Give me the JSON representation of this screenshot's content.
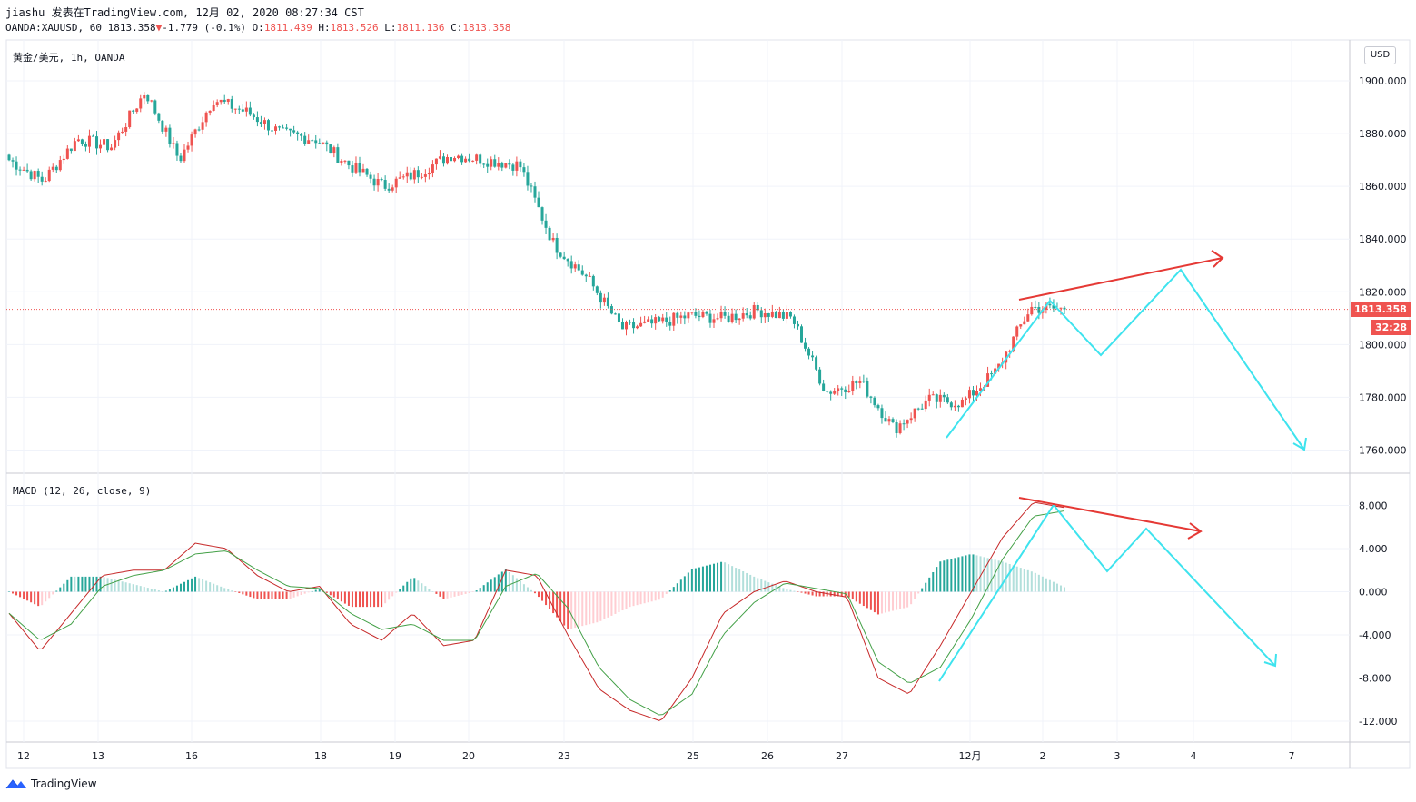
{
  "header": {
    "author": "jiashu",
    "published_text": "发表在TradingView.com, 12月 02, 2020 08:27:34 CST",
    "symbol": "OANDA:XAUUSD, 60",
    "last": "1813.358",
    "change_arrow": "▼",
    "change": "-1.779",
    "change_pct": "(-0.1%)",
    "o_label": "O:",
    "o": "1811.439",
    "h_label": "H:",
    "h": "1813.526",
    "l_label": "L:",
    "l": "1811.136",
    "c_label": "C:",
    "c": "1813.358"
  },
  "price_pane": {
    "title": "黄金/美元, 1h, OANDA",
    "currency_button": "USD",
    "last_price_tag": "1813.358",
    "countdown_tag": "32:28"
  },
  "macd_pane": {
    "title": "MACD (12, 26, close, 9)"
  },
  "colors": {
    "up": "#ef5350",
    "down": "#26a69a",
    "macd_line": "#c62828",
    "signal_line": "#43a047",
    "annotation_cyan": "#3ee3ee",
    "annotation_red": "#e53935",
    "grid": "#f0f3fa"
  },
  "brand": {
    "name": "TradingView",
    "icon": "tradingview-logo-icon"
  },
  "chart_data": [
    {
      "type": "candlestick",
      "title": "黄金/美元, 1h, OANDA",
      "y_ticks": [
        "1900.000",
        "1880.000",
        "1860.000",
        "1840.000",
        "1820.000",
        "1800.000",
        "1780.000",
        "1760.000"
      ],
      "ylim": [
        1755,
        1905
      ],
      "x_ticks": [
        "12",
        "13",
        "16",
        "18",
        "19",
        "20",
        "23",
        "25",
        "26",
        "27",
        "12月",
        "2",
        "3",
        "4",
        "7"
      ],
      "last_price": 1813.358,
      "close_path_estimate": [
        {
          "x": "12",
          "y": 1870
        },
        {
          "x": "12",
          "y": 1862
        },
        {
          "x": "13",
          "y": 1878
        },
        {
          "x": "13",
          "y": 1875
        },
        {
          "x": "16",
          "y": 1896
        },
        {
          "x": "16",
          "y": 1870
        },
        {
          "x": "16",
          "y": 1893
        },
        {
          "x": "18",
          "y": 1888
        },
        {
          "x": "18",
          "y": 1880
        },
        {
          "x": "19",
          "y": 1878
        },
        {
          "x": "19",
          "y": 1868
        },
        {
          "x": "20",
          "y": 1860
        },
        {
          "x": "20",
          "y": 1865
        },
        {
          "x": "23",
          "y": 1872
        },
        {
          "x": "23",
          "y": 1870
        },
        {
          "x": "23",
          "y": 1868
        },
        {
          "x": "23",
          "y": 1838
        },
        {
          "x": "23",
          "y": 1825
        },
        {
          "x": "25",
          "y": 1806
        },
        {
          "x": "25",
          "y": 1808
        },
        {
          "x": "26",
          "y": 1811
        },
        {
          "x": "26",
          "y": 1810
        },
        {
          "x": "27",
          "y": 1813
        },
        {
          "x": "27",
          "y": 1810
        },
        {
          "x": "27",
          "y": 1782
        },
        {
          "x": "27",
          "y": 1786
        },
        {
          "x": "12月",
          "y": 1768
        },
        {
          "x": "12月",
          "y": 1779
        },
        {
          "x": "12月",
          "y": 1778
        },
        {
          "x": "12月",
          "y": 1790
        },
        {
          "x": "2",
          "y": 1814
        },
        {
          "x": "2",
          "y": 1813.358
        }
      ]
    },
    {
      "type": "line",
      "title": "MACD (12, 26, close, 9)",
      "y_ticks": [
        "8.000",
        "4.000",
        "0.000",
        "-4.000",
        "-8.000",
        "-12.000"
      ],
      "ylim": [
        -13.5,
        9.5
      ],
      "series": [
        {
          "values": [
            -2,
            -5.5,
            -2,
            1.5,
            2,
            2,
            4.5,
            4,
            1.5,
            0,
            0.5,
            -3,
            -4.5,
            -2,
            -5,
            -4.5,
            2,
            1.5,
            -4,
            -9,
            -11,
            -12,
            -8,
            -2,
            0,
            1,
            0,
            -0.5,
            -8,
            -9.5,
            -5,
            0,
            5,
            8.3,
            7.8
          ]
        },
        {
          "values": [
            -2,
            -4.5,
            -3,
            0.5,
            1.5,
            2,
            3.5,
            3.8,
            2,
            0.5,
            0.3,
            -2,
            -3.5,
            -3,
            -4.5,
            -4.5,
            0.5,
            1.7,
            -1.5,
            -7,
            -10,
            -11.5,
            -9.5,
            -4,
            -1,
            0.8,
            0.3,
            -0.2,
            -6.5,
            -8.5,
            -7,
            -2.5,
            3,
            7,
            7.5
          ]
        }
      ]
    }
  ]
}
